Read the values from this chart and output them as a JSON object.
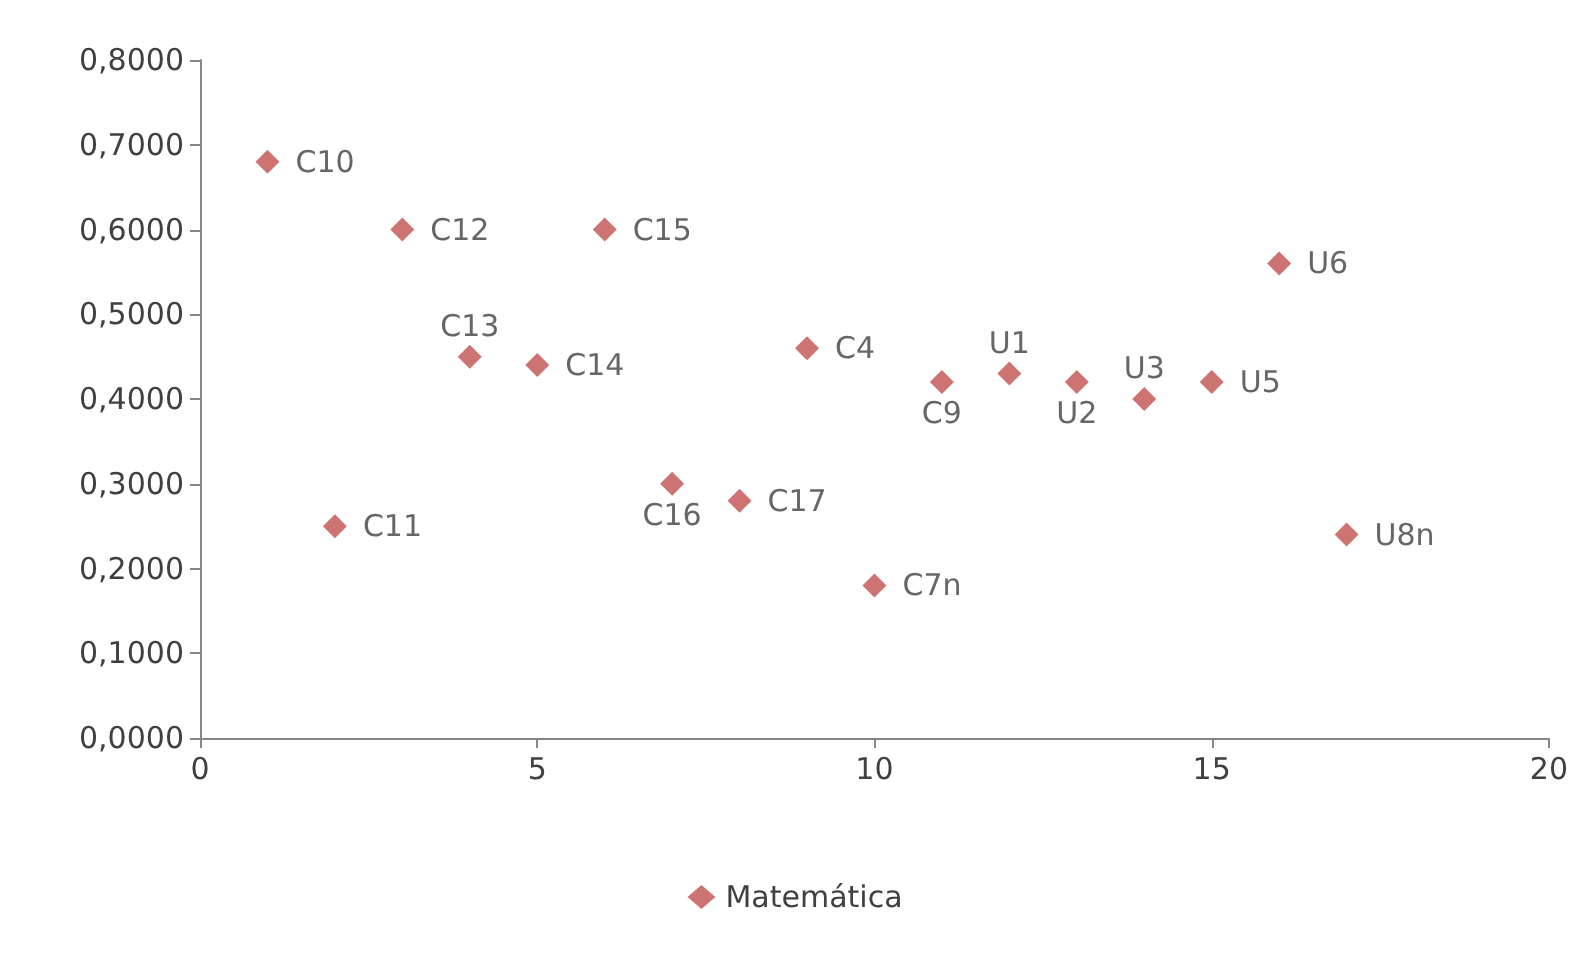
{
  "chart_data": {
    "type": "scatter",
    "x": [
      1,
      2,
      3,
      4,
      5,
      6,
      7,
      8,
      9,
      10,
      11,
      12,
      13,
      14,
      15,
      16,
      17
    ],
    "series": [
      {
        "name": "Matemática",
        "color": "#c0504d",
        "values": [
          0.68,
          0.25,
          0.6,
          0.45,
          0.44,
          0.6,
          0.3,
          0.28,
          0.46,
          0.18,
          0.42,
          0.43,
          0.42,
          0.4,
          0.42,
          0.56,
          0.24
        ]
      }
    ],
    "xlim": [
      0,
      20
    ],
    "xticks": [
      0,
      5,
      10,
      15,
      20
    ],
    "ylim": [
      0,
      0.8
    ],
    "yticks": [
      {
        "value": 0,
        "label": "0,0000"
      },
      {
        "value": 0.1,
        "label": "0,1000"
      },
      {
        "value": 0.2,
        "label": "0,2000"
      },
      {
        "value": 0.3,
        "label": "0,3000"
      },
      {
        "value": 0.4,
        "label": "0,4000"
      },
      {
        "value": 0.5,
        "label": "0,5000"
      },
      {
        "value": 0.6,
        "label": "0,6000"
      },
      {
        "value": 0.7,
        "label": "0,7000"
      },
      {
        "value": 0.8,
        "label": "0,8000"
      }
    ],
    "annotations": [
      {
        "text": "C10",
        "x": 1,
        "y": 0.68
      },
      {
        "text": "C11",
        "x": 2,
        "y": 0.25
      },
      {
        "text": "C12",
        "x": 3,
        "y": 0.6
      },
      {
        "text": "C13",
        "x": 4,
        "y": 0.45
      },
      {
        "text": "C14",
        "x": 5,
        "y": 0.44
      },
      {
        "text": "C15",
        "x": 6,
        "y": 0.6
      },
      {
        "text": "C16",
        "x": 7,
        "y": 0.3
      },
      {
        "text": "C17",
        "x": 8,
        "y": 0.28
      },
      {
        "text": "C4",
        "x": 9,
        "y": 0.46
      },
      {
        "text": "C7n",
        "x": 10,
        "y": 0.18
      },
      {
        "text": "C9",
        "x": 11,
        "y": 0.42
      },
      {
        "text": "U1",
        "x": 12,
        "y": 0.43
      },
      {
        "text": "U2",
        "x": 13,
        "y": 0.42
      },
      {
        "text": "U3",
        "x": 14,
        "y": 0.4
      },
      {
        "text": "U5",
        "x": 15,
        "y": 0.42
      },
      {
        "text": "U6",
        "x": 16,
        "y": 0.56
      },
      {
        "text": "U8n",
        "x": 17,
        "y": 0.24
      }
    ],
    "grid": false,
    "legend": "bottom",
    "marker": "diamond"
  }
}
